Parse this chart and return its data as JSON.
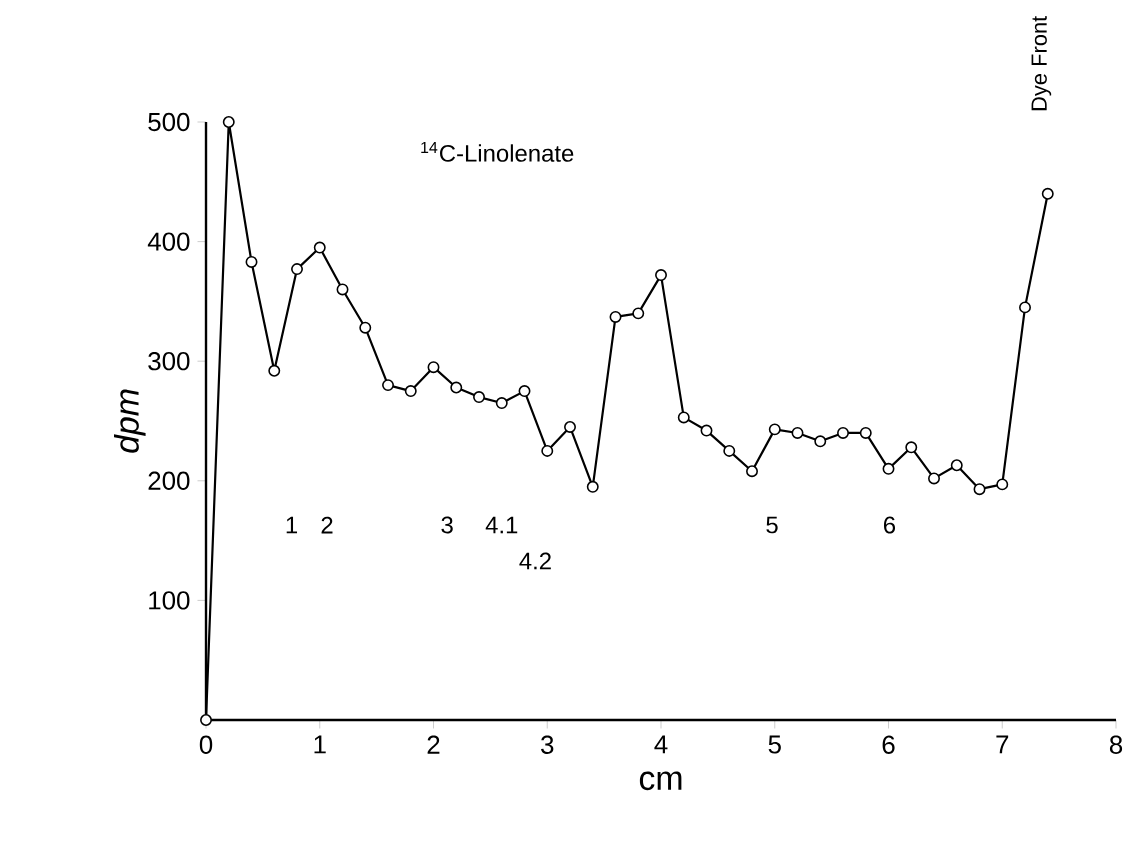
{
  "chart_data": {
    "type": "line",
    "title": "$^{14}$C-Linolenate",
    "xlabel": "cm",
    "ylabel": "dpm",
    "x": [
      0,
      0.2,
      0.4,
      0.6,
      0.8,
      1.0,
      1.2,
      1.4,
      1.6,
      1.8,
      2.0,
      2.2,
      2.4,
      2.6,
      2.8,
      3.0,
      3.2,
      3.4,
      3.6,
      3.8,
      4.0,
      4.2,
      4.4,
      4.6,
      4.8,
      5.0,
      5.2,
      5.4,
      5.6,
      5.8,
      6.0,
      6.2,
      6.4,
      6.6,
      6.8,
      7.0,
      7.2,
      7.4
    ],
    "values": [
      0,
      500,
      383,
      292,
      377,
      395,
      360,
      328,
      280,
      275,
      295,
      278,
      270,
      265,
      275,
      225,
      245,
      195,
      337,
      340,
      372,
      253,
      242,
      225,
      208,
      243,
      240,
      233,
      240,
      240,
      210,
      228,
      202,
      213,
      193,
      197,
      345,
      440
    ],
    "color": "#000000",
    "marker": "circle",
    "line_style": "solid",
    "xlim": [
      0,
      8
    ],
    "xticks": [
      0,
      1,
      2,
      3,
      4,
      5,
      6,
      7,
      8
    ],
    "ylim": [
      0,
      500
    ],
    "yticks": [
      100,
      200,
      300,
      400,
      500
    ],
    "annotations": [
      "1",
      "2",
      "3",
      "4.1",
      "4.2",
      "5",
      "6",
      "Dye Front"
    ],
    "grid": false
  }
}
